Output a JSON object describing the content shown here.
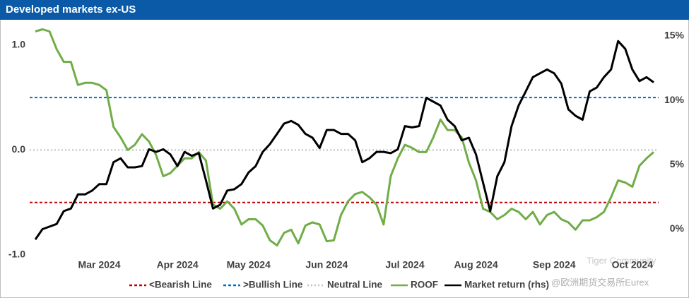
{
  "chart_data": {
    "type": "line",
    "title": "Developed markets ex-US",
    "categories": [
      null,
      null,
      null,
      null,
      null,
      null,
      null,
      null,
      null,
      "Mar 2024",
      null,
      null,
      null,
      null,
      null,
      null,
      null,
      null,
      null,
      null,
      "Apr 2024",
      null,
      null,
      null,
      null,
      null,
      null,
      null,
      null,
      null,
      "May 2024",
      null,
      null,
      null,
      null,
      null,
      null,
      null,
      null,
      null,
      null,
      "Jun 2024",
      null,
      null,
      null,
      null,
      null,
      null,
      null,
      null,
      null,
      null,
      "Jul 2024",
      null,
      null,
      null,
      null,
      null,
      null,
      null,
      null,
      null,
      "Aug 2024",
      null,
      null,
      null,
      null,
      null,
      null,
      null,
      null,
      null,
      null,
      "Sep 2024",
      null,
      null,
      null,
      null,
      null,
      null,
      null,
      null,
      null,
      null,
      "Oct 2024",
      null,
      null,
      null
    ],
    "ylim": [
      -1,
      1.16
    ],
    "yticks": [
      {
        "value": 1,
        "label": "1.0"
      },
      {
        "value": 0,
        "label": "0.0"
      },
      {
        "value": -1,
        "label": "-1.0"
      }
    ],
    "y2lim": [
      -2,
      15.6
    ],
    "y2ticks": [
      {
        "value": 15,
        "label": "15%"
      },
      {
        "value": 10,
        "label": "10%"
      },
      {
        "value": 5,
        "label": "5%"
      },
      {
        "value": 0,
        "label": "0%"
      }
    ],
    "reference_lines": [
      {
        "name": "<Bearish Line",
        "value": -0.5,
        "color": "#c00000",
        "style": "dashed"
      },
      {
        "name": ">Bullish Line",
        "value": 0.5,
        "color": "#0070c0",
        "style": "dashed"
      },
      {
        "name": "Neutral Line",
        "value": 0,
        "color": "#bfbfbf",
        "style": "dotted"
      }
    ],
    "series": [
      {
        "name": "ROOF",
        "color": "#70ad47",
        "values": [
          1.13,
          1.15,
          1.13,
          0.96,
          0.84,
          0.84,
          0.62,
          0.64,
          0.64,
          0.62,
          0.57,
          0.22,
          0.12,
          0.0,
          0.05,
          0.15,
          0.08,
          -0.05,
          -0.25,
          -0.22,
          -0.15,
          -0.08,
          -0.08,
          -0.02,
          -0.1,
          -0.52,
          -0.56,
          -0.49,
          -0.56,
          -0.71,
          -0.66,
          -0.66,
          -0.72,
          -0.86,
          -0.91,
          -0.79,
          -0.76,
          -0.89,
          -0.72,
          -0.69,
          -0.71,
          -0.87,
          -0.86,
          -0.62,
          -0.49,
          -0.42,
          -0.4,
          -0.45,
          -0.52,
          -0.71,
          -0.25,
          -0.08,
          0.05,
          0.02,
          -0.02,
          -0.02,
          0.12,
          0.29,
          0.19,
          0.19,
          0.12,
          -0.12,
          -0.29,
          -0.56,
          -0.59,
          -0.66,
          -0.62,
          -0.56,
          -0.59,
          -0.66,
          -0.59,
          -0.71,
          -0.62,
          -0.59,
          -0.66,
          -0.69,
          -0.76,
          -0.67,
          -0.67,
          -0.64,
          -0.59,
          -0.45,
          -0.29,
          -0.31,
          -0.35,
          -0.15,
          -0.08,
          -0.02
        ]
      },
      {
        "name": "Market return (rhs)",
        "color": "#000000",
        "axis": "y2",
        "values": [
          -0.8,
          0,
          0.2,
          0.4,
          1.4,
          1.6,
          2.7,
          2.7,
          3.0,
          3.5,
          3.5,
          5.2,
          5.5,
          4.8,
          4.8,
          4.9,
          6.2,
          6.0,
          6.2,
          5.8,
          4.9,
          6.0,
          5.7,
          5.9,
          3.8,
          1.6,
          1.9,
          3.0,
          3.1,
          3.5,
          4.4,
          4.9,
          6.0,
          6.6,
          7.4,
          8.2,
          8.4,
          8.1,
          7.4,
          7.1,
          6.3,
          7.7,
          7.7,
          7.4,
          7.4,
          6.9,
          5.2,
          5.5,
          6.0,
          6.0,
          5.9,
          6.2,
          8.0,
          7.9,
          8.0,
          10.2,
          9.9,
          9.6,
          8.5,
          8.0,
          6.9,
          7.1,
          5.8,
          3.6,
          1.4,
          4.1,
          5.2,
          8.0,
          9.6,
          10.7,
          11.8,
          12.1,
          12.4,
          12.1,
          11.3,
          9.3,
          8.8,
          8.5,
          10.7,
          11.0,
          11.8,
          12.4,
          14.6,
          14.0,
          12.4,
          11.5,
          11.8,
          11.4
        ]
      }
    ],
    "watermark": [
      "Tiger Community",
      "@欧洲期货交易所Eurex"
    ]
  }
}
